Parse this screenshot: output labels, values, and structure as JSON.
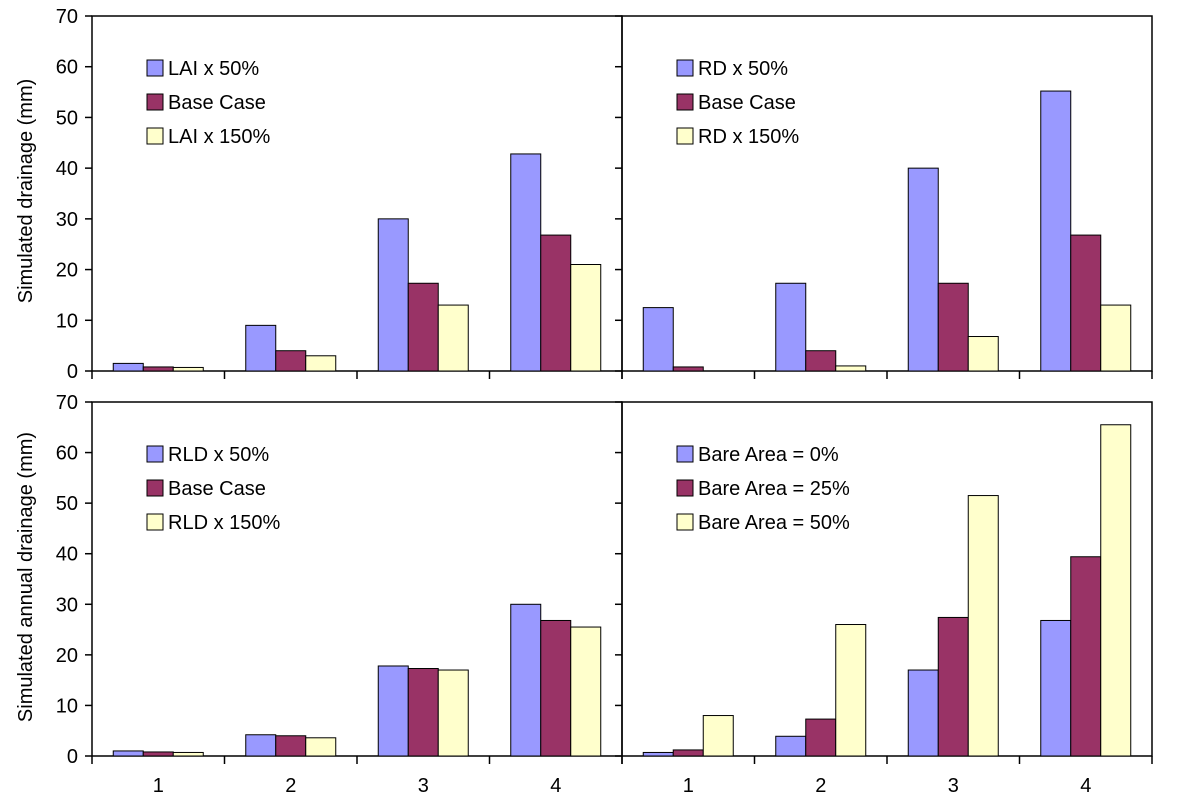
{
  "figure": {
    "ylabel": "Simulated annual drainage  (mm)",
    "ylabel_top": "Simulated drainage  (mm)"
  },
  "colors": {
    "series_1": "#9999ff",
    "series_2": "#993366",
    "series_3": "#ffffcc",
    "axis": "#000000"
  },
  "chart_data": [
    {
      "type": "bar",
      "panel": "top-left",
      "categories": [
        "1",
        "2",
        "3",
        "4"
      ],
      "ylim": [
        0,
        70
      ],
      "yticks": [
        "0",
        "10",
        "20",
        "30",
        "40",
        "50",
        "60",
        "70"
      ],
      "legend_position": "top-left",
      "series": [
        {
          "name": "LAI x 50%",
          "values": [
            1.5,
            9.0,
            30.0,
            42.8
          ]
        },
        {
          "name": "Base Case",
          "values": [
            0.8,
            4.0,
            17.3,
            26.8
          ]
        },
        {
          "name": "LAI x 150%",
          "values": [
            0.7,
            3.0,
            13.0,
            21.0
          ]
        }
      ]
    },
    {
      "type": "bar",
      "panel": "top-right",
      "categories": [
        "1",
        "2",
        "3",
        "4"
      ],
      "ylim": [
        0,
        70
      ],
      "yticks": [],
      "legend_position": "top-left",
      "series": [
        {
          "name": "RD x 50%",
          "values": [
            12.5,
            17.3,
            40.0,
            55.2
          ]
        },
        {
          "name": "Base Case",
          "values": [
            0.8,
            4.0,
            17.3,
            26.8
          ]
        },
        {
          "name": "RD x 150%",
          "values": [
            0.0,
            1.0,
            6.8,
            13.0
          ]
        }
      ]
    },
    {
      "type": "bar",
      "panel": "bottom-left",
      "categories": [
        "1",
        "2",
        "3",
        "4"
      ],
      "ylim": [
        0,
        70
      ],
      "yticks": [
        "0",
        "10",
        "20",
        "30",
        "40",
        "50",
        "60",
        "70"
      ],
      "legend_position": "top-left",
      "series": [
        {
          "name": "RLD x 50%",
          "values": [
            1.0,
            4.2,
            17.8,
            30.0
          ]
        },
        {
          "name": "Base Case",
          "values": [
            0.8,
            4.0,
            17.3,
            26.8
          ]
        },
        {
          "name": "RLD x 150%",
          "values": [
            0.7,
            3.6,
            17.0,
            25.5
          ]
        }
      ]
    },
    {
      "type": "bar",
      "panel": "bottom-right",
      "categories": [
        "1",
        "2",
        "3",
        "4"
      ],
      "ylim": [
        0,
        70
      ],
      "yticks": [],
      "legend_position": "top-left",
      "series": [
        {
          "name": "Bare Area = 0%",
          "values": [
            0.7,
            3.9,
            17.0,
            26.8
          ]
        },
        {
          "name": "Bare Area = 25%",
          "values": [
            1.2,
            7.3,
            27.4,
            39.4
          ]
        },
        {
          "name": "Bare Area = 50%",
          "values": [
            8.0,
            26.0,
            51.5,
            65.5
          ]
        }
      ]
    }
  ]
}
